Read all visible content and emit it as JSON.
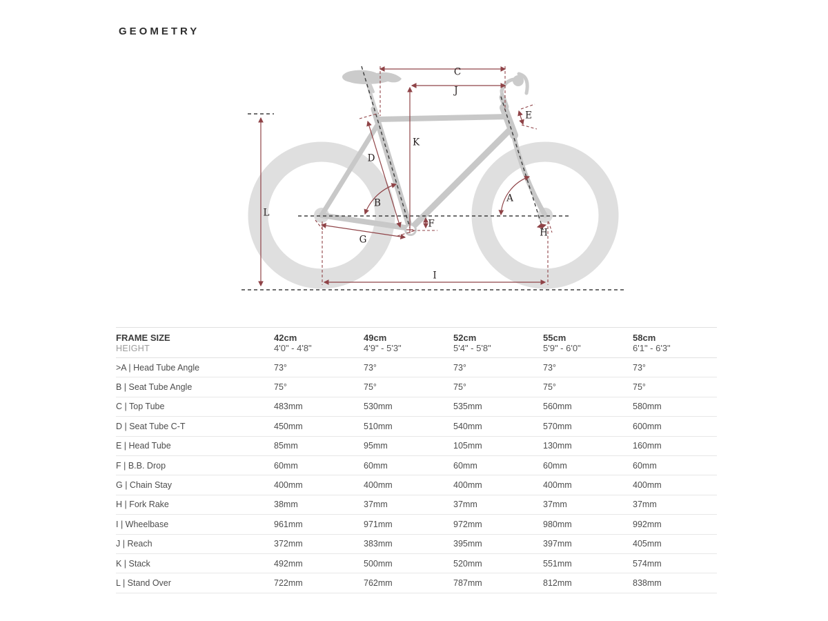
{
  "page": {
    "title": "GEOMETRY"
  },
  "diagram": {
    "dimension_labels": {
      "A": "A",
      "B": "B",
      "C": "C",
      "D": "D",
      "E": "E",
      "F": "F",
      "G": "G",
      "H": "H",
      "I": "I",
      "J": "J",
      "K": "K",
      "L": "L"
    },
    "colors": {
      "dimension_line": "#8f4347",
      "frame_gray": "#c8c8c8",
      "wheel_gray": "#dfdfdf"
    }
  },
  "table": {
    "frame_size_label": "FRAME SIZE",
    "sizes": [
      "42cm",
      "49cm",
      "52cm",
      "55cm",
      "58cm"
    ],
    "height_row": {
      "label": "HEIGHT",
      "values": [
        "4'0\" - 4'8\"",
        "4'9\" - 5'3\"",
        "5'4\" - 5'8\"",
        "5'9\" - 6'0\"",
        "6'1\" - 6'3\""
      ]
    },
    "rows": [
      {
        "label": ">A | Head Tube Angle",
        "values": [
          "73°",
          "73°",
          "73°",
          "73°",
          "73°"
        ]
      },
      {
        "label": "B | Seat Tube Angle",
        "values": [
          "75°",
          "75°",
          "75°",
          "75°",
          "75°"
        ]
      },
      {
        "label": "C | Top Tube",
        "values": [
          "483mm",
          "530mm",
          "535mm",
          "560mm",
          "580mm"
        ]
      },
      {
        "label": "D | Seat Tube C-T",
        "values": [
          "450mm",
          "510mm",
          "540mm",
          "570mm",
          "600mm"
        ]
      },
      {
        "label": "E | Head Tube",
        "values": [
          "85mm",
          "95mm",
          "105mm",
          "130mm",
          "160mm"
        ]
      },
      {
        "label": "F | B.B. Drop",
        "values": [
          "60mm",
          "60mm",
          "60mm",
          "60mm",
          "60mm"
        ]
      },
      {
        "label": "G | Chain Stay",
        "values": [
          "400mm",
          "400mm",
          "400mm",
          "400mm",
          "400mm"
        ]
      },
      {
        "label": "H | Fork Rake",
        "values": [
          "38mm",
          "37mm",
          "37mm",
          "37mm",
          "37mm"
        ]
      },
      {
        "label": "I | Wheelbase",
        "values": [
          "961mm",
          "971mm",
          "972mm",
          "980mm",
          "992mm"
        ]
      },
      {
        "label": "J | Reach",
        "values": [
          "372mm",
          "383mm",
          "395mm",
          "397mm",
          "405mm"
        ]
      },
      {
        "label": "K | Stack",
        "values": [
          "492mm",
          "500mm",
          "520mm",
          "551mm",
          "574mm"
        ]
      },
      {
        "label": "L | Stand Over",
        "values": [
          "722mm",
          "762mm",
          "787mm",
          "812mm",
          "838mm"
        ]
      }
    ]
  }
}
